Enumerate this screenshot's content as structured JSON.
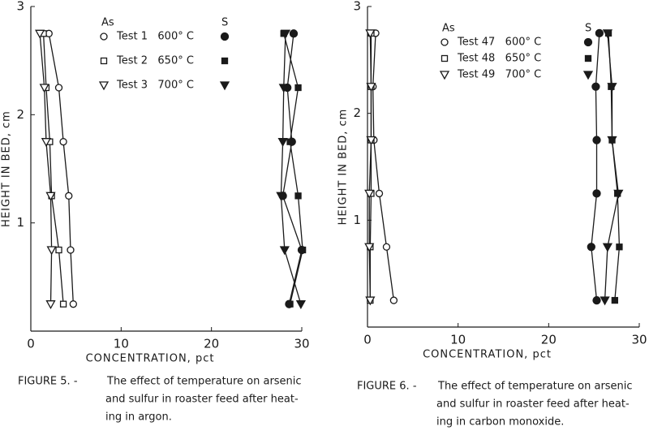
{
  "chart_data": [
    {
      "type": "line",
      "y_label": "HEIGHT IN BED, cm",
      "x_label": "CONCENTRATION, pct",
      "caption_label": "FIGURE 5. -",
      "caption_lines": [
        "The effect of temperature on arsenic",
        "and sulfur in roaster feed after heat-",
        "ing in argon."
      ],
      "legend_headers": [
        "As",
        "S"
      ],
      "xlim": [
        0,
        30
      ],
      "xticks": [
        0,
        10,
        20,
        30
      ],
      "ylim": [
        0,
        3
      ],
      "yticks": [
        1,
        2,
        3
      ],
      "heights": [
        2.75,
        2.25,
        1.75,
        1.25,
        0.75,
        0.25
      ],
      "color": "#1a1a1a",
      "series": [
        {
          "name": "Test 1   600° C",
          "marker": "circle",
          "as_values": [
            2.0,
            3.1,
            3.6,
            4.2,
            4.4,
            4.7
          ],
          "s_values": [
            29.1,
            28.4,
            28.9,
            27.9,
            30.0,
            28.6
          ]
        },
        {
          "name": "Test 2   650° C",
          "marker": "square",
          "as_values": [
            1.4,
            1.7,
            2.1,
            2.3,
            3.1,
            3.6
          ],
          "s_values": [
            28.0,
            29.6,
            28.7,
            29.6,
            30.1,
            28.7
          ]
        },
        {
          "name": "Test 3   700° C",
          "marker": "triangle",
          "as_values": [
            1.0,
            1.5,
            1.7,
            2.2,
            2.3,
            2.2
          ],
          "s_values": [
            28.2,
            28.0,
            27.9,
            27.7,
            28.1,
            29.9
          ]
        }
      ]
    },
    {
      "type": "line",
      "y_label": "HEIGHT IN BED, cm",
      "x_label": "CONCENTRATION, pct",
      "caption_label": "FIGURE 6. -",
      "caption_lines": [
        "The effect of temperature on arsenic",
        "and sulfur in roaster feed after heat-",
        "ing in carbon monoxide."
      ],
      "legend_headers": [
        "As",
        "S"
      ],
      "xlim": [
        0,
        30
      ],
      "xticks": [
        0,
        10,
        20,
        30
      ],
      "ylim": [
        0,
        3
      ],
      "yticks": [
        1,
        2,
        3
      ],
      "heights": [
        2.75,
        2.25,
        1.75,
        1.25,
        0.75,
        0.25
      ],
      "color": "#1a1a1a",
      "series": [
        {
          "name": "Test 47   600° C",
          "marker": "circle",
          "as_values": [
            0.9,
            0.6,
            0.7,
            1.3,
            2.1,
            2.9
          ],
          "s_values": [
            25.6,
            25.2,
            25.3,
            25.3,
            24.7,
            25.3
          ]
        },
        {
          "name": "Test 48   650° C",
          "marker": "square",
          "as_values": [
            0.4,
            0.4,
            0.4,
            0.4,
            0.3,
            0.3
          ],
          "s_values": [
            26.6,
            26.9,
            27.0,
            27.6,
            27.8,
            27.3
          ]
        },
        {
          "name": "Test 49   700° C",
          "marker": "triangle",
          "as_values": [
            0.3,
            0.4,
            0.4,
            0.2,
            0.2,
            0.3
          ],
          "s_values": [
            26.5,
            27.0,
            27.0,
            27.7,
            26.5,
            26.2
          ]
        }
      ]
    }
  ]
}
